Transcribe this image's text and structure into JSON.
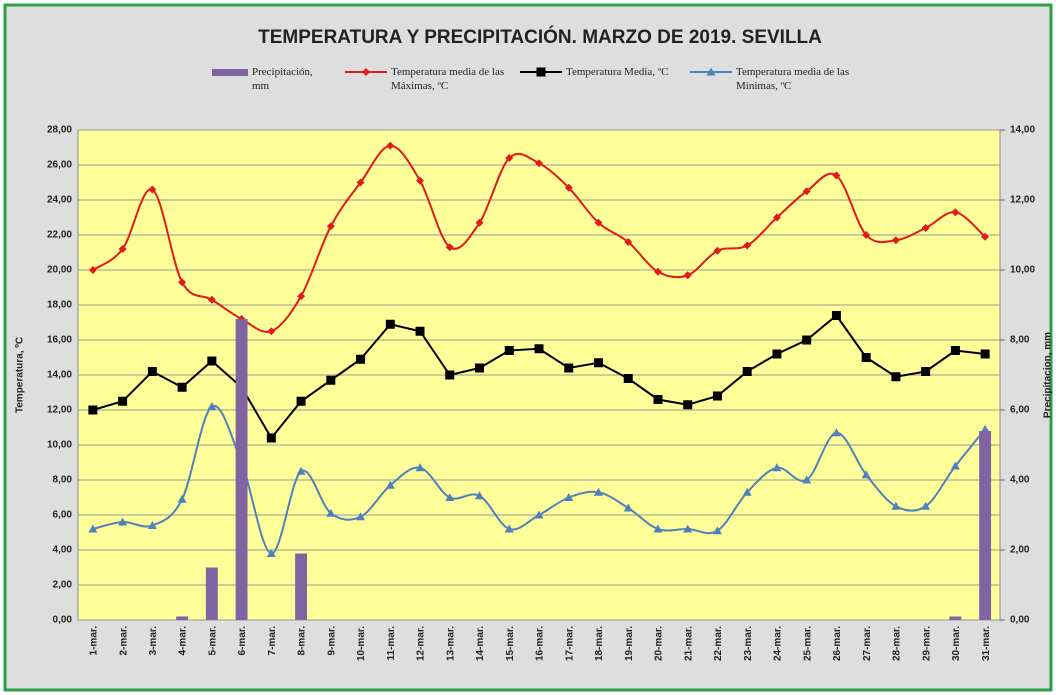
{
  "chart_data": {
    "type": "bar-line",
    "title": "TEMPERATURA Y PRECIPITACIÓN. MARZO DE 2019. SEVILLA",
    "y_label": "Temperatura, ºC",
    "y2_label": "Precipitacion, mm",
    "categories": [
      "1-mar.",
      "2-mar.",
      "3-mar.",
      "4-mar.",
      "5-mar.",
      "6-mar.",
      "7-mar.",
      "8-mar.",
      "9-mar.",
      "10-mar.",
      "11-mar.",
      "12-mar.",
      "13-mar.",
      "14-mar.",
      "15-mar.",
      "16-mar.",
      "17-mar.",
      "18-mar.",
      "19-mar.",
      "20-mar.",
      "21-mar.",
      "22-mar.",
      "23-mar.",
      "24-mar.",
      "25-mar.",
      "26-mar.",
      "27-mar.",
      "28-mar.",
      "29-mar.",
      "30-mar.",
      "31-mar."
    ],
    "series": [
      {
        "name": "Precipitación, mm",
        "type": "bar",
        "axis": "y2",
        "color": "#8064a2",
        "values": [
          0,
          0,
          0,
          0.1,
          1.5,
          8.6,
          0,
          1.9,
          0,
          0,
          0,
          0,
          0,
          0,
          0,
          0,
          0,
          0,
          0,
          0,
          0,
          0,
          0,
          0,
          0,
          0,
          0,
          0,
          0,
          0.1,
          5.4
        ]
      },
      {
        "name": "Temperatura media de las Máximas, ºC",
        "type": "line",
        "axis": "y",
        "color": "#e31a1c",
        "marker": "diamond",
        "smooth": true,
        "values": [
          20.0,
          21.2,
          24.6,
          19.3,
          18.3,
          17.2,
          16.5,
          18.5,
          22.5,
          25.0,
          27.1,
          25.1,
          21.3,
          22.7,
          26.4,
          26.1,
          24.7,
          22.7,
          21.6,
          19.9,
          19.7,
          21.1,
          21.4,
          23.0,
          24.5,
          25.4,
          22.0,
          21.7,
          22.4,
          23.3,
          21.9
        ]
      },
      {
        "name": "Temperatura Media, ºC",
        "type": "line",
        "axis": "y",
        "color": "#000000",
        "marker": "square",
        "smooth": false,
        "values": [
          12.0,
          12.5,
          14.2,
          13.3,
          14.8,
          13.3,
          10.4,
          12.5,
          13.7,
          14.9,
          16.9,
          16.5,
          14.0,
          14.4,
          15.4,
          15.5,
          14.4,
          14.7,
          13.8,
          12.6,
          12.3,
          12.8,
          14.2,
          15.2,
          16.0,
          17.4,
          15.0,
          13.9,
          14.2,
          15.4,
          15.2
        ]
      },
      {
        "name": "Temperatura media de las Mínimas, ºC",
        "type": "line",
        "axis": "y",
        "color": "#4f81bd",
        "marker": "triangle",
        "smooth": true,
        "values": [
          5.2,
          5.6,
          5.4,
          6.9,
          12.2,
          9.0,
          3.8,
          8.5,
          6.1,
          5.9,
          7.7,
          8.7,
          7.0,
          7.1,
          5.2,
          6.0,
          7.0,
          7.3,
          6.4,
          5.2,
          5.2,
          5.1,
          7.3,
          8.7,
          8.0,
          10.7,
          8.3,
          6.5,
          6.5,
          8.8,
          10.9
        ]
      }
    ],
    "ylim": [
      0,
      28
    ],
    "yticks": [
      {
        "value": 0,
        "label": "0,00"
      },
      {
        "value": 2,
        "label": "2,00"
      },
      {
        "value": 4,
        "label": "4,00"
      },
      {
        "value": 6,
        "label": "6,00"
      },
      {
        "value": 8,
        "label": "8,00"
      },
      {
        "value": 10,
        "label": "10,00"
      },
      {
        "value": 12,
        "label": "12,00"
      },
      {
        "value": 14,
        "label": "14,00"
      },
      {
        "value": 16,
        "label": "16,00"
      },
      {
        "value": 18,
        "label": "18,00"
      },
      {
        "value": 20,
        "label": "20,00"
      },
      {
        "value": 22,
        "label": "22,00"
      },
      {
        "value": 24,
        "label": "24,00"
      },
      {
        "value": 26,
        "label": "26,00"
      },
      {
        "value": 28,
        "label": "28,00"
      }
    ],
    "y2lim": [
      0,
      14
    ],
    "y2ticks": [
      {
        "value": 0,
        "label": "0,00"
      },
      {
        "value": 2,
        "label": "2,00"
      },
      {
        "value": 4,
        "label": "4,00"
      },
      {
        "value": 6,
        "label": "6,00"
      },
      {
        "value": 8,
        "label": "8,00"
      },
      {
        "value": 10,
        "label": "10,00"
      },
      {
        "value": 12,
        "label": "12,00"
      },
      {
        "value": 14,
        "label": "14,00"
      }
    ],
    "grid": true,
    "legend": "top"
  }
}
